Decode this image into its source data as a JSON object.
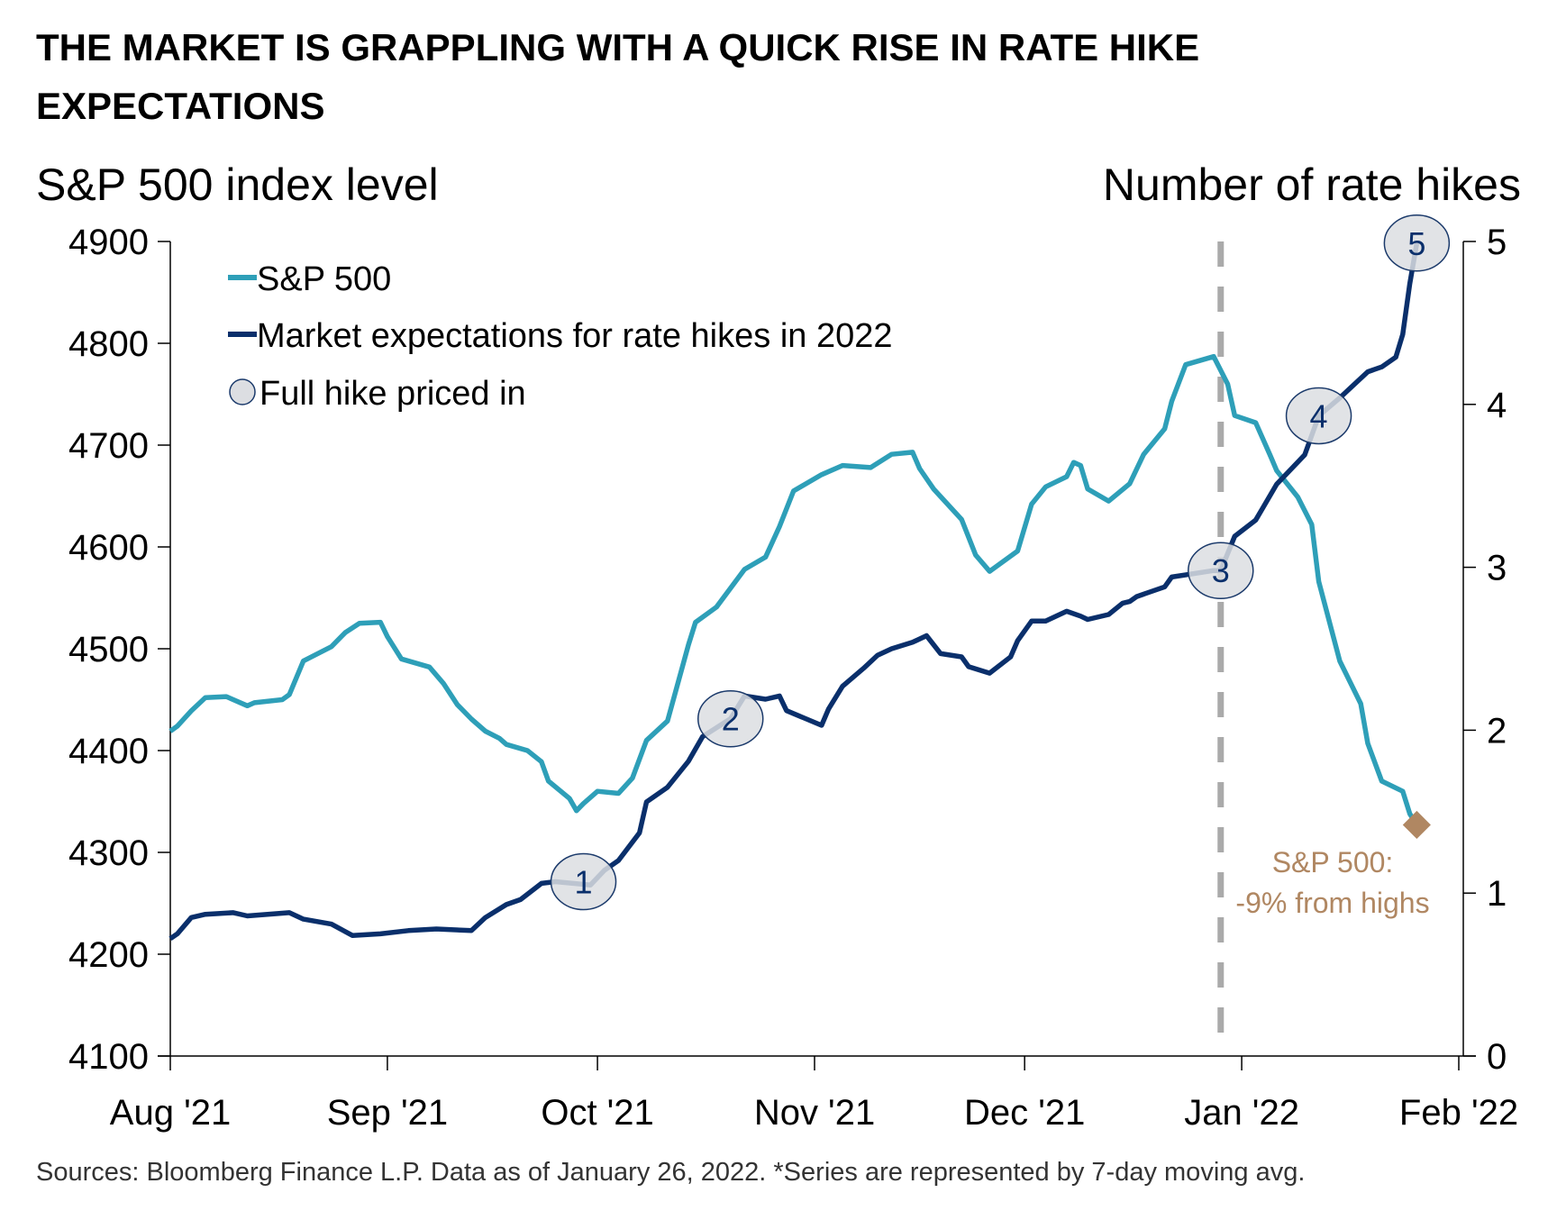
{
  "chart_data": {
    "type": "line",
    "title": "THE MARKET IS GRAPPLING WITH A QUICK RISE IN RATE HIKE EXPECTATIONS",
    "title_lines": [
      "THE MARKET IS GRAPPLING WITH A QUICK RISE IN RATE HIKE",
      "EXPECTATIONS"
    ],
    "ylabel_left": "S&P 500 index level",
    "ylabel_right": "Number of rate hikes",
    "ylim_left": [
      4100,
      4900
    ],
    "ylim_right": [
      0,
      5
    ],
    "xlim": [
      "2021-08-01",
      "2022-02-01"
    ],
    "x_ticks": [
      {
        "date": "2021-08-01",
        "label": "Aug '21"
      },
      {
        "date": "2021-09-01",
        "label": "Sep '21"
      },
      {
        "date": "2021-10-01",
        "label": "Oct '21"
      },
      {
        "date": "2021-11-01",
        "label": "Nov '21"
      },
      {
        "date": "2021-12-01",
        "label": "Dec '21"
      },
      {
        "date": "2022-01-01",
        "label": "Jan '22"
      },
      {
        "date": "2022-02-01",
        "label": "Feb '22"
      }
    ],
    "y_ticks_left": [
      "4100",
      "4200",
      "4300",
      "4400",
      "4500",
      "4600",
      "4700",
      "4800",
      "4900"
    ],
    "y_ticks_right": [
      "0",
      "1",
      "2",
      "3",
      "4",
      "5"
    ],
    "grid": false,
    "legend_placement": "top-left",
    "colors": {
      "sp500": "#2e9fb8",
      "hikes": "#0a2f6b",
      "marker_fill": "#dcdee2",
      "marker_stroke": "#1b3a6b",
      "dashed_line": "#aaaaaa",
      "annotation": "#b08762"
    },
    "series": [
      {
        "name": "S&P 500",
        "axis": "left",
        "points": [
          [
            "2021-08-01",
            4419
          ],
          [
            "2021-08-02",
            4424
          ],
          [
            "2021-08-04",
            4439
          ],
          [
            "2021-08-06",
            4452
          ],
          [
            "2021-08-09",
            4453
          ],
          [
            "2021-08-12",
            4444
          ],
          [
            "2021-08-13",
            4447
          ],
          [
            "2021-08-17",
            4450
          ],
          [
            "2021-08-18",
            4455
          ],
          [
            "2021-08-20",
            4488
          ],
          [
            "2021-08-24",
            4502
          ],
          [
            "2021-08-26",
            4516
          ],
          [
            "2021-08-28",
            4525
          ],
          [
            "2021-08-31",
            4526
          ],
          [
            "2021-09-01",
            4512
          ],
          [
            "2021-09-03",
            4490
          ],
          [
            "2021-09-07",
            4482
          ],
          [
            "2021-09-09",
            4466
          ],
          [
            "2021-09-11",
            4445
          ],
          [
            "2021-09-13",
            4431
          ],
          [
            "2021-09-15",
            4419
          ],
          [
            "2021-09-17",
            4412
          ],
          [
            "2021-09-18",
            4406
          ],
          [
            "2021-09-21",
            4400
          ],
          [
            "2021-09-23",
            4389
          ],
          [
            "2021-09-24",
            4370
          ],
          [
            "2021-09-27",
            4353
          ],
          [
            "2021-09-28",
            4341
          ],
          [
            "2021-09-29",
            4348
          ],
          [
            "2021-10-01",
            4360
          ],
          [
            "2021-10-04",
            4358
          ],
          [
            "2021-10-06",
            4373
          ],
          [
            "2021-10-08",
            4410
          ],
          [
            "2021-10-11",
            4429
          ],
          [
            "2021-10-14",
            4504
          ],
          [
            "2021-10-15",
            4526
          ],
          [
            "2021-10-18",
            4541
          ],
          [
            "2021-10-22",
            4578
          ],
          [
            "2021-10-25",
            4590
          ],
          [
            "2021-10-27",
            4620
          ],
          [
            "2021-10-29",
            4655
          ],
          [
            "2021-11-02",
            4671
          ],
          [
            "2021-11-05",
            4680
          ],
          [
            "2021-11-09",
            4678
          ],
          [
            "2021-11-12",
            4691
          ],
          [
            "2021-11-15",
            4693
          ],
          [
            "2021-11-16",
            4677
          ],
          [
            "2021-11-18",
            4657
          ],
          [
            "2021-11-22",
            4627
          ],
          [
            "2021-11-24",
            4592
          ],
          [
            "2021-11-26",
            4576
          ],
          [
            "2021-11-30",
            4596
          ],
          [
            "2021-12-02",
            4642
          ],
          [
            "2021-12-04",
            4659
          ],
          [
            "2021-12-07",
            4669
          ],
          [
            "2021-12-08",
            4683
          ],
          [
            "2021-12-09",
            4680
          ],
          [
            "2021-12-10",
            4657
          ],
          [
            "2021-12-13",
            4645
          ],
          [
            "2021-12-16",
            4662
          ],
          [
            "2021-12-18",
            4691
          ],
          [
            "2021-12-21",
            4716
          ],
          [
            "2021-12-22",
            4743
          ],
          [
            "2021-12-24",
            4779
          ],
          [
            "2021-12-28",
            4787
          ],
          [
            "2021-12-30",
            4760
          ],
          [
            "2021-12-31",
            4729
          ],
          [
            "2022-01-03",
            4722
          ],
          [
            "2022-01-05",
            4691
          ],
          [
            "2022-01-06",
            4675
          ],
          [
            "2022-01-09",
            4649
          ],
          [
            "2022-01-11",
            4622
          ],
          [
            "2022-01-12",
            4566
          ],
          [
            "2022-01-15",
            4488
          ],
          [
            "2022-01-18",
            4446
          ],
          [
            "2022-01-19",
            4407
          ],
          [
            "2022-01-21",
            4370
          ],
          [
            "2022-01-24",
            4360
          ],
          [
            "2022-01-25",
            4338
          ],
          [
            "2022-01-26",
            4327
          ]
        ]
      },
      {
        "name": "Market expectations for rate hikes in 2022",
        "axis": "right",
        "points": [
          [
            "2021-08-01",
            0.72
          ],
          [
            "2021-08-02",
            0.75
          ],
          [
            "2021-08-04",
            0.85
          ],
          [
            "2021-08-06",
            0.87
          ],
          [
            "2021-08-10",
            0.88
          ],
          [
            "2021-08-12",
            0.86
          ],
          [
            "2021-08-18",
            0.88
          ],
          [
            "2021-08-20",
            0.84
          ],
          [
            "2021-08-24",
            0.81
          ],
          [
            "2021-08-27",
            0.74
          ],
          [
            "2021-08-31",
            0.75
          ],
          [
            "2021-09-04",
            0.77
          ],
          [
            "2021-09-08",
            0.78
          ],
          [
            "2021-09-13",
            0.77
          ],
          [
            "2021-09-15",
            0.85
          ],
          [
            "2021-09-18",
            0.93
          ],
          [
            "2021-09-20",
            0.96
          ],
          [
            "2021-09-23",
            1.06
          ],
          [
            "2021-09-25",
            1.07
          ],
          [
            "2021-09-30",
            1.05
          ],
          [
            "2021-10-02",
            1.14
          ],
          [
            "2021-10-04",
            1.2
          ],
          [
            "2021-10-07",
            1.37
          ],
          [
            "2021-10-08",
            1.56
          ],
          [
            "2021-10-11",
            1.65
          ],
          [
            "2021-10-14",
            1.81
          ],
          [
            "2021-10-16",
            1.96
          ],
          [
            "2021-10-20",
            2.07
          ],
          [
            "2021-10-22",
            2.21
          ],
          [
            "2021-10-25",
            2.19
          ],
          [
            "2021-10-27",
            2.21
          ],
          [
            "2021-10-28",
            2.12
          ],
          [
            "2021-11-02",
            2.03
          ],
          [
            "2021-11-03",
            2.13
          ],
          [
            "2021-11-05",
            2.27
          ],
          [
            "2021-11-08",
            2.38
          ],
          [
            "2021-11-10",
            2.46
          ],
          [
            "2021-11-12",
            2.5
          ],
          [
            "2021-11-15",
            2.54
          ],
          [
            "2021-11-17",
            2.58
          ],
          [
            "2021-11-19",
            2.47
          ],
          [
            "2021-11-22",
            2.45
          ],
          [
            "2021-11-23",
            2.39
          ],
          [
            "2021-11-26",
            2.35
          ],
          [
            "2021-11-29",
            2.45
          ],
          [
            "2021-11-30",
            2.55
          ],
          [
            "2021-12-02",
            2.67
          ],
          [
            "2021-12-04",
            2.67
          ],
          [
            "2021-12-07",
            2.73
          ],
          [
            "2021-12-09",
            2.7
          ],
          [
            "2021-12-10",
            2.68
          ],
          [
            "2021-12-13",
            2.71
          ],
          [
            "2021-12-15",
            2.78
          ],
          [
            "2021-12-16",
            2.79
          ],
          [
            "2021-12-17",
            2.82
          ],
          [
            "2021-12-21",
            2.88
          ],
          [
            "2021-12-22",
            2.94
          ],
          [
            "2021-12-28",
            2.98
          ],
          [
            "2021-12-29",
            2.98
          ],
          [
            "2021-12-31",
            3.19
          ],
          [
            "2022-01-03",
            3.29
          ],
          [
            "2022-01-06",
            3.51
          ],
          [
            "2022-01-10",
            3.69
          ],
          [
            "2022-01-12",
            3.93
          ],
          [
            "2022-01-15",
            4.04
          ],
          [
            "2022-01-17",
            4.12
          ],
          [
            "2022-01-19",
            4.2
          ],
          [
            "2022-01-21",
            4.23
          ],
          [
            "2022-01-23",
            4.29
          ],
          [
            "2022-01-24",
            4.43
          ],
          [
            "2022-01-25",
            4.74
          ],
          [
            "2022-01-26",
            4.99
          ]
        ]
      }
    ],
    "hike_markers": [
      {
        "label": "1",
        "date": "2021-09-29",
        "value": 1.07
      },
      {
        "label": "2",
        "date": "2021-10-20",
        "value": 2.07
      },
      {
        "label": "3",
        "date": "2021-12-29",
        "value": 2.98
      },
      {
        "label": "4",
        "date": "2022-01-12",
        "value": 3.93
      },
      {
        "label": "5",
        "date": "2022-01-26",
        "value": 4.99
      }
    ],
    "legend": [
      {
        "label": "S&P 500",
        "symbol": "line",
        "color": "#2e9fb8"
      },
      {
        "label": "Market expectations for rate hikes in 2022",
        "symbol": "line",
        "color": "#0a2f6b"
      },
      {
        "label": "Full hike priced in",
        "symbol": "circle",
        "color": "#dcdee2"
      }
    ],
    "vertical_reference": {
      "date": "2021-12-29",
      "style": "dashed"
    },
    "annotation": {
      "lines": [
        "S&P 500:",
        "-9% from highs"
      ],
      "date": "2022-01-26",
      "value": 4327,
      "marker": "diamond"
    },
    "source": "Sources: Bloomberg Finance L.P. Data as of January 26, 2022. *Series are represented by 7-day moving avg."
  }
}
